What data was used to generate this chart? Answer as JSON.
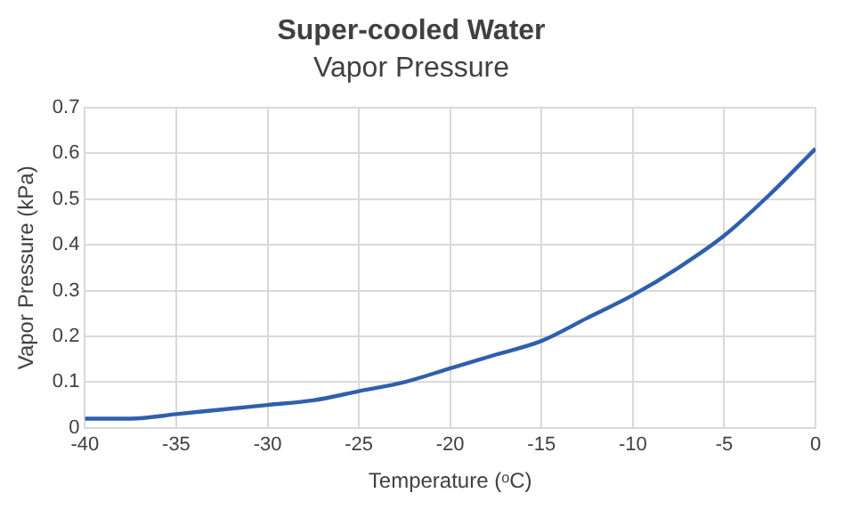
{
  "chart_data": {
    "type": "line",
    "title": "Super-cooled Water",
    "subtitle": "Vapor Pressure",
    "xlabel": "Temperature (ᵒC)",
    "ylabel": "Vapor Pressure (kPa)",
    "x": [
      -40,
      -37.5,
      -35,
      -32.5,
      -30,
      -27.5,
      -25,
      -22.5,
      -20,
      -17.5,
      -15,
      -12.5,
      -10,
      -7.5,
      -5,
      -2.5,
      0
    ],
    "series": [
      {
        "color": "#2f5fad",
        "values": [
          0.02,
          0.02,
          0.03,
          0.04,
          0.05,
          0.06,
          0.08,
          0.1,
          0.13,
          0.16,
          0.19,
          0.24,
          0.29,
          0.35,
          0.42,
          0.51,
          0.61
        ]
      }
    ],
    "xlim": [
      -40,
      0
    ],
    "xticks": [
      -40,
      -35,
      -30,
      -25,
      -20,
      -15,
      -10,
      -5,
      0
    ],
    "ylim": [
      0,
      0.7
    ],
    "yticks": [
      0,
      0.1,
      0.2,
      0.3,
      0.4,
      0.5,
      0.6,
      0.7
    ],
    "grid": true,
    "legend": false,
    "marker": "none",
    "line_style": "solid"
  }
}
